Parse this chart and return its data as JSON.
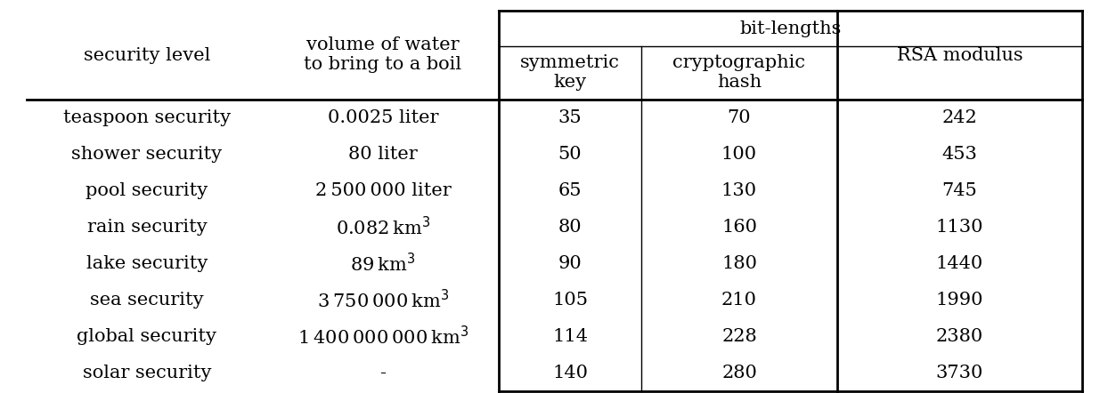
{
  "title": "bit-lengths",
  "col_headers_row0": [
    "",
    "",
    "symmetric\nkey",
    "cryptographic\nhash",
    "RSA modulus"
  ],
  "col_header_left0": "security level",
  "col_header_left1": "volume of water\nto bring to a boil",
  "rows": [
    [
      "teaspoon security",
      "0.0025 liter",
      "35",
      "70",
      "242"
    ],
    [
      "shower security",
      "80 liter",
      "50",
      "100",
      "453"
    ],
    [
      "pool security",
      "2 500 000 liter",
      "65",
      "130",
      "745"
    ],
    [
      "rain security",
      "0.082 km$^3$",
      "80",
      "160",
      "1130"
    ],
    [
      "lake security",
      "89 km$^3$",
      "90",
      "180",
      "1440"
    ],
    [
      "sea security",
      "3 750 000 km$^3$",
      "105",
      "210",
      "1990"
    ],
    [
      "global security",
      "1 400 000 000 km$^3$",
      "114",
      "228",
      "2380"
    ],
    [
      "solar security",
      "-",
      "140",
      "280",
      "3730"
    ]
  ],
  "background_color": "#ffffff",
  "text_color": "#000000",
  "font_size": 15,
  "title_font_size": 15
}
